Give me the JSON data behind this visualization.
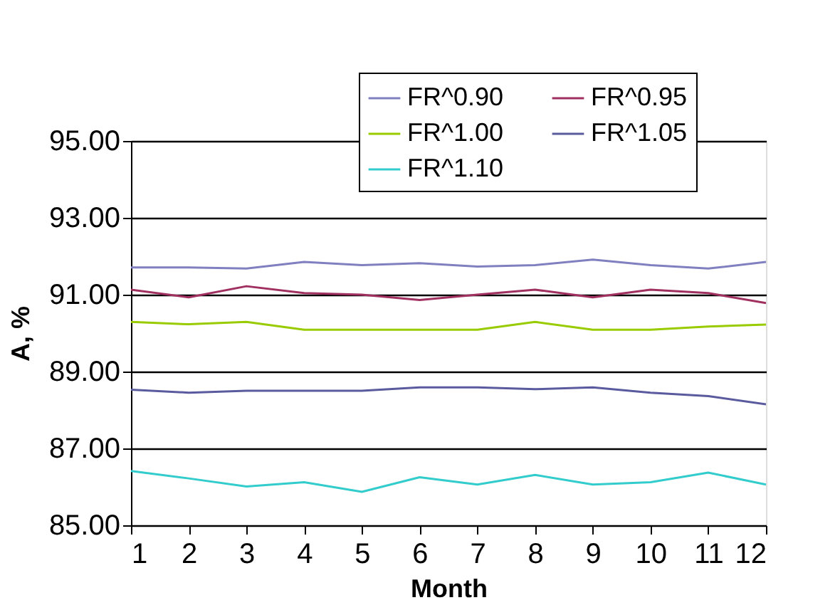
{
  "chart_data": {
    "type": "line",
    "xlabel": "Month",
    "ylabel": "A, %",
    "x": [
      1,
      2,
      3,
      4,
      5,
      6,
      7,
      8,
      9,
      10,
      11,
      12
    ],
    "series": [
      {
        "name": "FR^0.90",
        "color": "#8080c0",
        "values": [
          91.71,
          91.71,
          91.68,
          91.85,
          91.77,
          91.82,
          91.73,
          91.77,
          91.91,
          91.77,
          91.68,
          91.85
        ]
      },
      {
        "name": "FR^0.95",
        "color": "#a0305f",
        "values": [
          91.13,
          90.93,
          91.22,
          91.04,
          91.0,
          90.86,
          91.0,
          91.13,
          90.93,
          91.13,
          91.04,
          90.78
        ]
      },
      {
        "name": "FR^1.00",
        "color": "#99cc00",
        "values": [
          90.29,
          90.23,
          90.29,
          90.09,
          90.09,
          90.09,
          90.09,
          90.29,
          90.09,
          90.09,
          90.17,
          90.22
        ]
      },
      {
        "name": "FR^1.05",
        "color": "#5a5a9e",
        "values": [
          88.53,
          88.45,
          88.5,
          88.5,
          88.5,
          88.59,
          88.59,
          88.54,
          88.59,
          88.45,
          88.36,
          88.15
        ]
      },
      {
        "name": "FR^1.10",
        "color": "#33cccc",
        "values": [
          86.41,
          86.22,
          86.01,
          86.12,
          85.87,
          86.25,
          86.06,
          86.31,
          86.06,
          86.12,
          86.37,
          86.06
        ]
      }
    ],
    "xlim": [
      1,
      12
    ],
    "xticks": [
      1,
      2,
      3,
      4,
      5,
      6,
      7,
      8,
      9,
      10,
      11,
      12
    ],
    "ylim": [
      85,
      95
    ],
    "yticks": [
      {
        "value": 85,
        "label": "85.00"
      },
      {
        "value": 87,
        "label": "87.00"
      },
      {
        "value": 89,
        "label": "89.00"
      },
      {
        "value": 91,
        "label": "91.00"
      },
      {
        "value": 93,
        "label": "93.00"
      },
      {
        "value": 95,
        "label": "95.00"
      }
    ],
    "grid": "y",
    "legend": "top right",
    "marker": "none",
    "line_style": "solid"
  }
}
